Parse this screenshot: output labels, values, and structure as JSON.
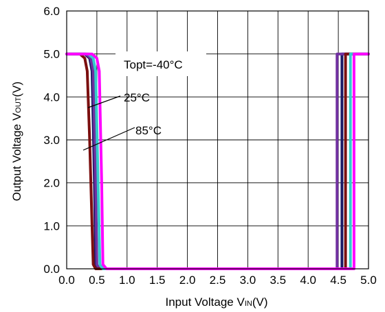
{
  "chart_data": {
    "type": "line",
    "title": "",
    "xlabel": {
      "main": "Input Voltage V",
      "sub": "IN",
      "unit": "(V)"
    },
    "ylabel": {
      "main": "Output Voltage V",
      "sub": "OUT",
      "unit": "(V)"
    },
    "xlim": [
      0,
      5
    ],
    "ylim": [
      0,
      6
    ],
    "x_ticks": [
      "0.0",
      "0.5",
      "1.0",
      "1.5",
      "2.0",
      "2.5",
      "3.0",
      "3.5",
      "4.0",
      "4.5",
      "5.0"
    ],
    "y_ticks": [
      "0.0",
      "1.0",
      "2.0",
      "3.0",
      "4.0",
      "5.0",
      "6.0"
    ],
    "grid": true,
    "annotations": [
      {
        "text": "Topt=-40°C",
        "target": "-40C"
      },
      {
        "text": "25°C",
        "target": "25C"
      },
      {
        "text": "85°C",
        "target": "85C"
      }
    ],
    "series": [
      {
        "id": "dark-blue",
        "color": "#1a1a66",
        "points": [
          [
            0,
            5.0
          ],
          [
            0.3,
            5.0
          ],
          [
            0.38,
            4.9
          ],
          [
            0.42,
            4.6
          ],
          [
            0.46,
            2.0
          ],
          [
            0.48,
            0.1
          ],
          [
            0.52,
            0.0
          ],
          [
            1.0,
            0.0
          ],
          [
            4.5,
            0.0
          ],
          [
            4.56,
            0.0
          ],
          [
            4.56,
            5.0
          ],
          [
            5.0,
            5.0
          ]
        ]
      },
      {
        "id": "purple",
        "color": "#7030a0",
        "points": [
          [
            0,
            5.0
          ],
          [
            0.32,
            5.0
          ],
          [
            0.4,
            4.9
          ],
          [
            0.44,
            4.6
          ],
          [
            0.48,
            2.0
          ],
          [
            0.5,
            0.1
          ],
          [
            0.54,
            0.0
          ],
          [
            1.0,
            0.0
          ],
          [
            4.48,
            0.0
          ],
          [
            4.48,
            5.0
          ],
          [
            5.0,
            5.0
          ]
        ]
      },
      {
        "id": "85C",
        "color": "#7b0f0f",
        "points": [
          [
            0,
            5.0
          ],
          [
            0.22,
            5.0
          ],
          [
            0.3,
            4.9
          ],
          [
            0.34,
            4.6
          ],
          [
            0.38,
            3.0
          ],
          [
            0.42,
            1.0
          ],
          [
            0.44,
            0.1
          ],
          [
            0.48,
            0.0
          ],
          [
            1.0,
            0.0
          ],
          [
            4.5,
            0.0
          ],
          [
            4.62,
            0.0
          ],
          [
            4.62,
            5.0
          ],
          [
            5.0,
            5.0
          ]
        ]
      },
      {
        "id": "25C",
        "color": "#33cccc",
        "points": [
          [
            0,
            5.0
          ],
          [
            0.36,
            5.0
          ],
          [
            0.44,
            4.9
          ],
          [
            0.48,
            4.6
          ],
          [
            0.52,
            2.0
          ],
          [
            0.55,
            0.1
          ],
          [
            0.6,
            0.0
          ],
          [
            1.0,
            0.0
          ],
          [
            4.5,
            0.0
          ],
          [
            4.7,
            0.0
          ],
          [
            4.7,
            5.0
          ],
          [
            5.0,
            5.0
          ]
        ]
      },
      {
        "id": "-40C",
        "color": "#ff00ff",
        "points": [
          [
            0,
            5.0
          ],
          [
            0.42,
            5.0
          ],
          [
            0.5,
            4.9
          ],
          [
            0.54,
            4.6
          ],
          [
            0.58,
            2.0
          ],
          [
            0.6,
            0.1
          ],
          [
            0.66,
            0.0
          ],
          [
            1.0,
            0.0
          ],
          [
            4.5,
            0.0
          ],
          [
            4.76,
            0.0
          ],
          [
            4.76,
            5.0
          ],
          [
            5.0,
            5.0
          ]
        ]
      }
    ]
  }
}
